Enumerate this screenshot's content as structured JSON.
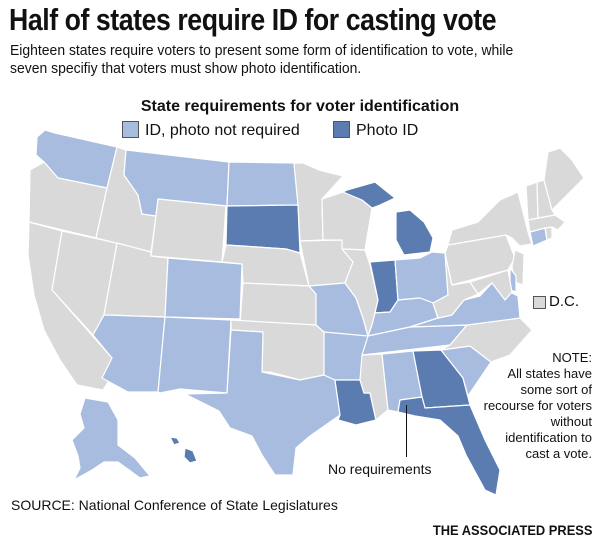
{
  "title": "Half of states require ID for casting vote",
  "subtitle_lines": [
    "Eighteen states require voters to present some form of identification to vote, while",
    "seven specifiy that voters must show photo identification."
  ],
  "legend": {
    "title": "State requirements for voter identification",
    "items": [
      {
        "label": "ID, photo not required",
        "color": "#a7bcdf"
      },
      {
        "label": "Photo ID",
        "color": "#5b7cb1"
      }
    ]
  },
  "colors": {
    "none": "#d9d9d9",
    "id": "#a7bcdf",
    "photo": "#5b7cb1"
  },
  "dc_label": "D.C.",
  "note": {
    "title": "NOTE:",
    "text": "All states have some sort of recourse for voters without identification to cast a vote."
  },
  "no_requirements_label": "No requirements",
  "source": "SOURCE: National Conference of State Legislatures",
  "credit": "THE ASSOCIATED PRESS",
  "states": {
    "WA": "id",
    "OR": "none",
    "CA": "none",
    "NV": "none",
    "ID": "none",
    "MT": "id",
    "WY": "none",
    "UT": "none",
    "CO": "id",
    "AZ": "id",
    "NM": "id",
    "ND": "id",
    "SD": "photo",
    "NE": "none",
    "KS": "none",
    "OK": "none",
    "TX": "id",
    "MN": "none",
    "IA": "none",
    "MO": "id",
    "AR": "id",
    "LA": "photo",
    "WI": "none",
    "IL": "none",
    "MI": "photo",
    "IN": "photo",
    "OH": "id",
    "KY": "id",
    "TN": "id",
    "MS": "none",
    "AL": "id",
    "GA": "photo",
    "FL": "photo",
    "SC": "id",
    "NC": "none",
    "VA": "id",
    "WV": "none",
    "PA": "none",
    "NY": "none",
    "NJ": "none",
    "DE": "id",
    "MD": "none",
    "CT": "id",
    "RI": "none",
    "MA": "none",
    "VT": "none",
    "NH": "none",
    "ME": "none",
    "AK": "id",
    "HI": "photo",
    "DC": "none"
  }
}
